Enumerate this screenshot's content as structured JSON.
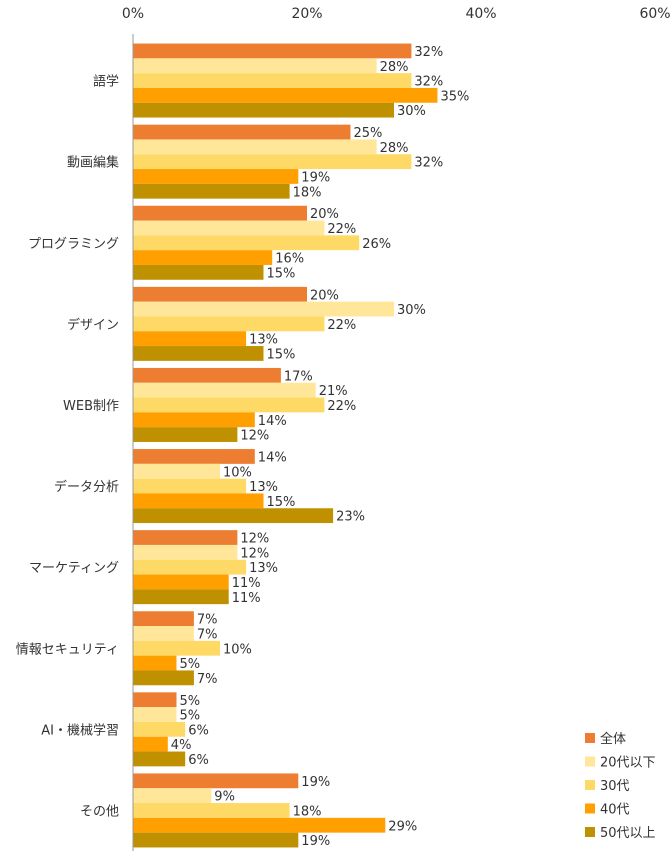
{
  "chart_data": {
    "type": "bar",
    "orientation": "horizontal",
    "title": "",
    "xlabel": "",
    "ylabel": "",
    "xlim": [
      0,
      60
    ],
    "x_ticks": [
      "0%",
      "20%",
      "40%",
      "60%"
    ],
    "x_tick_values": [
      0,
      20,
      40,
      60
    ],
    "grid": false,
    "legend_position": "bottom-right",
    "categories": [
      "語学",
      "動画編集",
      "プログラミング",
      "デザイン",
      "WEB制作",
      "データ分析",
      "マーケティング",
      "情報セキュリティ",
      "AI・機械学習",
      "その他"
    ],
    "series": [
      {
        "name": "全体",
        "color": "#ED7D31",
        "values": [
          32,
          25,
          20,
          20,
          17,
          14,
          12,
          7,
          5,
          19
        ]
      },
      {
        "name": "20代以下",
        "color": "#FFE699",
        "values": [
          28,
          28,
          22,
          30,
          21,
          10,
          12,
          7,
          5,
          9
        ]
      },
      {
        "name": "30代",
        "color": "#FFD966",
        "values": [
          32,
          32,
          26,
          22,
          22,
          13,
          13,
          10,
          6,
          18
        ]
      },
      {
        "name": "40代",
        "color": "#FFA000",
        "values": [
          35,
          19,
          16,
          13,
          14,
          15,
          11,
          5,
          4,
          29
        ]
      },
      {
        "name": "50代以上",
        "color": "#BF9000",
        "values": [
          30,
          18,
          15,
          15,
          12,
          23,
          11,
          7,
          6,
          19
        ]
      }
    ]
  }
}
